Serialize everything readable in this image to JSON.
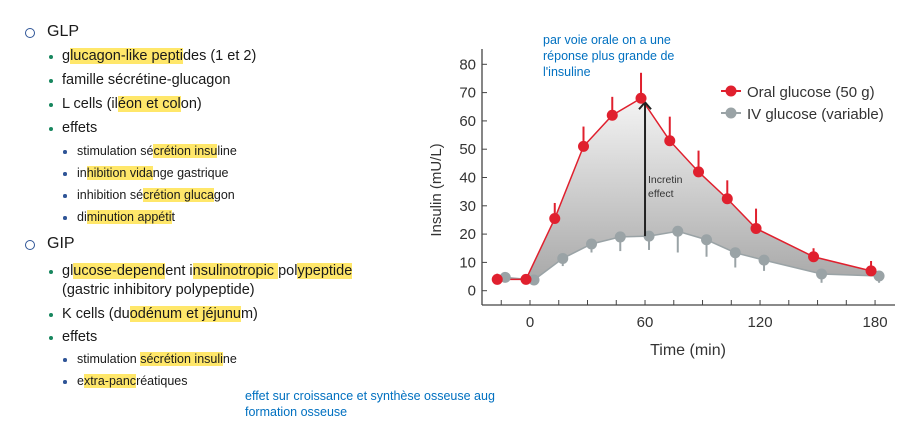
{
  "outline": [
    {
      "level": 1,
      "segments": [
        [
          "GLP",
          false
        ]
      ]
    },
    {
      "level": 2,
      "segments": [
        [
          "g",
          false
        ],
        [
          "lucagon-like pepti",
          true
        ],
        [
          "des (1 et 2)",
          false
        ]
      ]
    },
    {
      "level": 2,
      "segments": [
        [
          "famille sécrétine-glucagon",
          false
        ]
      ]
    },
    {
      "level": 2,
      "segments": [
        [
          "L cells (il",
          false
        ],
        [
          "éon et col",
          true
        ],
        [
          "on)",
          false
        ]
      ]
    },
    {
      "level": 2,
      "segments": [
        [
          "effets",
          false
        ]
      ]
    },
    {
      "level": 3,
      "segments": [
        [
          "stimulation sé",
          false
        ],
        [
          "crétion insu",
          true
        ],
        [
          "line",
          false
        ]
      ]
    },
    {
      "level": 3,
      "segments": [
        [
          "in",
          false
        ],
        [
          "hibition vida",
          true
        ],
        [
          "nge gastrique",
          false
        ]
      ]
    },
    {
      "level": 3,
      "segments": [
        [
          "inhibition sé",
          false
        ],
        [
          "crétion gluca",
          true
        ],
        [
          "gon",
          false
        ]
      ]
    },
    {
      "level": 3,
      "segments": [
        [
          "di",
          false
        ],
        [
          "minution appéti",
          true
        ],
        [
          "t",
          false
        ]
      ]
    },
    {
      "level": 1,
      "segments": [
        [
          "GIP",
          false
        ]
      ]
    },
    {
      "level": 2,
      "segments": [
        [
          "gl",
          false
        ],
        [
          "ucose-depend",
          true
        ],
        [
          "ent i",
          false
        ],
        [
          "nsulinotropic ",
          true
        ],
        [
          "pol",
          false
        ],
        [
          "ypeptide",
          true
        ]
      ]
    },
    {
      "level": 2,
      "cont": true,
      "segments": [
        [
          "(gastric inhibitory polypeptide)",
          false
        ]
      ]
    },
    {
      "level": 2,
      "segments": [
        [
          "K cells (du",
          false
        ],
        [
          "odénum et jéjunu",
          true
        ],
        [
          "m)",
          false
        ]
      ]
    },
    {
      "level": 2,
      "segments": [
        [
          "effets",
          false
        ]
      ]
    },
    {
      "level": 3,
      "segments": [
        [
          "stimulation ",
          false
        ],
        [
          "sécrétion insuli",
          true
        ],
        [
          "ne",
          false
        ]
      ]
    },
    {
      "level": 3,
      "segments": [
        [
          "e",
          false
        ],
        [
          "xtra-panc",
          true
        ],
        [
          "réatiques",
          false
        ]
      ]
    }
  ],
  "notes": {
    "oral": [
      "par voie orale on a une",
      "réponse plus grande de",
      "l'insuline"
    ],
    "gip": [
      "effet sur croissance et synthèse osseuse aug",
      "formation osseuse"
    ]
  },
  "colors": {
    "highlight": "#ffe76a",
    "note": "#0070c0",
    "oral": "#e0202e",
    "iv": "#9aa3a6"
  },
  "chart_data": {
    "type": "line",
    "title": "",
    "xlabel": "Time (min)",
    "ylabel": "Insulin (mU/L)",
    "xlim": [
      -20,
      190
    ],
    "ylim": [
      -2,
      82
    ],
    "xticks": [
      0,
      60,
      120,
      180
    ],
    "yticks": [
      0,
      10,
      20,
      30,
      40,
      50,
      60,
      70,
      80
    ],
    "x": [
      -15,
      0,
      15,
      30,
      45,
      60,
      75,
      90,
      105,
      120,
      150,
      180
    ],
    "series": [
      {
        "name": "Oral glucose (50 g)",
        "color": "#e0202e",
        "values": [
          4,
          4,
          25.5,
          51,
          62,
          68,
          53,
          42,
          32.5,
          22,
          12,
          7
        ],
        "error_upper": [
          6,
          4,
          31,
          58,
          68.5,
          77,
          61.5,
          49.5,
          39,
          29,
          15,
          10.5
        ]
      },
      {
        "name": "IV glucose (variable)",
        "color": "#9aa3a6",
        "values": [
          4.7,
          3.8,
          11.4,
          16.5,
          19,
          19.3,
          21,
          18,
          13.4,
          10.8,
          5.9,
          5.2
        ],
        "error_lower": [
          4.7,
          3.8,
          8.7,
          13.5,
          14,
          14.4,
          13.5,
          12,
          8.2,
          7,
          2.8,
          2.8
        ]
      }
    ],
    "annotation": "Incretin effect",
    "legend": "top-right",
    "grid": false
  }
}
